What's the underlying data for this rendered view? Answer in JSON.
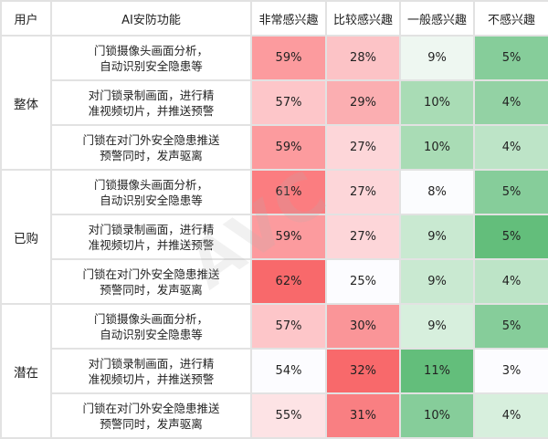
{
  "header": {
    "user": "用户",
    "feature": "AI安防功能",
    "levels": [
      "非常感兴趣",
      "比较感兴趣",
      "一般感兴趣",
      "不感兴趣"
    ]
  },
  "features": [
    "门锁摄像头画面分析，\n自动识别安全隐患等",
    "对门锁录制画面，进行精\n准视频切片，并推送预警",
    "门锁在对门外安全隐患推送\n预警同时，发声驱离"
  ],
  "groups": [
    {
      "user": "整体",
      "rows": [
        {
          "feature": "门锁摄像头画面分析，",
          "feature2": "自动识别安全隐患等",
          "values": [
            "59%",
            "28%",
            "9%",
            "5%"
          ],
          "colors": [
            "#fc9b9e",
            "#fcc3c6",
            "#eef7f1",
            "#86cd9a"
          ]
        },
        {
          "feature": "对门锁录制画面，进行精",
          "feature2": "准视频切片，并推送预警",
          "values": [
            "57%",
            "29%",
            "10%",
            "4%"
          ],
          "colors": [
            "#fdc6c9",
            "#fbaeb1",
            "#a9dcb5",
            "#93d2a4"
          ]
        },
        {
          "feature": "门锁在对门外安全隐患推送",
          "feature2": "预警同时，发声驱离",
          "values": [
            "59%",
            "27%",
            "10%",
            "4%"
          ],
          "colors": [
            "#fc9b9e",
            "#fdd6d9",
            "#a9dcb5",
            "#bde4c7"
          ]
        }
      ]
    },
    {
      "user": "已购",
      "rows": [
        {
          "feature": "门锁摄像头画面分析，",
          "feature2": "自动识别安全隐患等",
          "values": [
            "61%",
            "27%",
            "8%",
            "5%"
          ],
          "colors": [
            "#fb7d80",
            "#fdd6d9",
            "#fbfcfe",
            "#86cd9a"
          ]
        },
        {
          "feature": "对门锁录制画面，进行精",
          "feature2": "准视频切片，并推送预警",
          "values": [
            "59%",
            "27%",
            "9%",
            "5%"
          ],
          "colors": [
            "#fc9b9e",
            "#fdd6d9",
            "#c9e9d1",
            "#63be7b"
          ]
        },
        {
          "feature": "门锁在对门外安全隐患推送",
          "feature2": "预警同时，发声驱离",
          "values": [
            "62%",
            "25%",
            "9%",
            "4%"
          ],
          "colors": [
            "#f8696b",
            "#fcfcff",
            "#c9e9d1",
            "#bde4c7"
          ]
        }
      ]
    },
    {
      "user": "潜在",
      "rows": [
        {
          "feature": "门锁摄像头画面分析，",
          "feature2": "自动识别安全隐患等",
          "values": [
            "57%",
            "30%",
            "9%",
            "5%"
          ],
          "colors": [
            "#fdc6c9",
            "#fa9598",
            "#d7efdd",
            "#86cd9a"
          ]
        },
        {
          "feature": "对门锁录制画面，进行精",
          "feature2": "准视频切片，并推送预警",
          "values": [
            "54%",
            "32%",
            "11%",
            "3%"
          ],
          "colors": [
            "#fcfcff",
            "#f8696b",
            "#63be7b",
            "#fcfcff"
          ]
        },
        {
          "feature": "门锁在对门外安全隐患推送",
          "feature2": "预警同时，发声驱离",
          "values": [
            "55%",
            "31%",
            "10%",
            "4%"
          ],
          "colors": [
            "#fde3e5",
            "#f97f82",
            "#86cd9a",
            "#d7efdd"
          ]
        }
      ]
    }
  ],
  "watermark": "AVC",
  "chart_data": {
    "type": "heatmap",
    "title": "",
    "row_groups": [
      "整体",
      "已购",
      "潜在"
    ],
    "features": [
      "门锁摄像头画面分析，自动识别安全隐患等",
      "对门锁录制画面，进行精准视频切片，并推送预警",
      "门锁在对门外安全隐患推送预警同时，发声驱离"
    ],
    "columns": [
      "非常感兴趣",
      "比较感兴趣",
      "一般感兴趣",
      "不感兴趣"
    ],
    "series": [
      {
        "name": "整体",
        "values": [
          [
            59,
            28,
            9,
            5
          ],
          [
            57,
            29,
            10,
            4
          ],
          [
            59,
            27,
            10,
            4
          ]
        ]
      },
      {
        "name": "已购",
        "values": [
          [
            61,
            27,
            8,
            5
          ],
          [
            59,
            27,
            9,
            5
          ],
          [
            62,
            25,
            9,
            4
          ]
        ]
      },
      {
        "name": "潜在",
        "values": [
          [
            57,
            30,
            9,
            5
          ],
          [
            54,
            32,
            11,
            3
          ],
          [
            55,
            31,
            10,
            4
          ]
        ]
      }
    ],
    "unit": "%",
    "color_scale": "per-column red (high) / green (high), white (low)"
  }
}
